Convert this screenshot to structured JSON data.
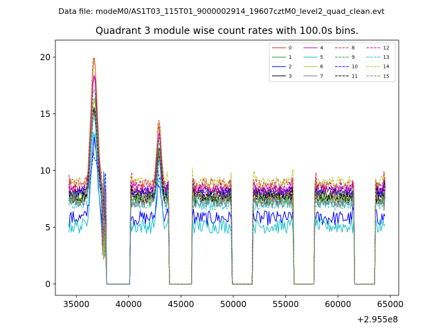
{
  "figure": {
    "suptitle": "Data file: modeM0/AS1T03_115T01_9000002914_19607cztM0_level2_quad_clean.evt"
  },
  "chart_data": {
    "type": "line",
    "title": "Quadrant 3 module wise count rates with 100.0s bins.",
    "xlabel": "",
    "ylabel": "",
    "x_offset_label": "+2.955e8",
    "xlim": [
      33000,
      65800
    ],
    "ylim": [
      -1.0,
      21.5
    ],
    "x_ticks": [
      35000,
      40000,
      45000,
      50000,
      55000,
      60000,
      65000
    ],
    "x_tick_labels": [
      "35000",
      "40000",
      "45000",
      "50000",
      "55000",
      "60000",
      "65000"
    ],
    "y_ticks": [
      0,
      5,
      10,
      15,
      20
    ],
    "y_tick_labels": [
      "0",
      "5",
      "10",
      "15",
      "20"
    ],
    "legend_position": "top-right",
    "legend_columns": 4,
    "segments": [
      {
        "start": 34300,
        "end": 37800,
        "flare_peak": 36700
      },
      {
        "start": 40200,
        "end": 43800,
        "flare_peak": 42900
      },
      {
        "start": 46100,
        "end": 49800
      },
      {
        "start": 51900,
        "end": 55700
      },
      {
        "start": 57800,
        "end": 61500
      },
      {
        "start": 63600,
        "end": 64500
      }
    ],
    "series": [
      {
        "name": "0",
        "color": "#d62728",
        "dash": false,
        "level": 8.3,
        "peak": 19.5
      },
      {
        "name": "1",
        "color": "#2ca02c",
        "dash": false,
        "level": 7.4,
        "peak": 16.5
      },
      {
        "name": "2",
        "color": "#0000ff",
        "dash": false,
        "level": 5.8,
        "peak": 12.5
      },
      {
        "name": "3",
        "color": "#000000",
        "dash": false,
        "level": 7.9,
        "peak": 15.5
      },
      {
        "name": "4",
        "color": "#bf00bf",
        "dash": false,
        "level": 8.0,
        "peak": 18.5
      },
      {
        "name": "5",
        "color": "#17becf",
        "dash": false,
        "level": 5.1,
        "peak": 13.5
      },
      {
        "name": "6",
        "color": "#bcbd22",
        "dash": false,
        "level": 7.6,
        "peak": 16.0
      },
      {
        "name": "7",
        "color": "#7f7f7f",
        "dash": false,
        "level": 7.2,
        "peak": 15.0
      },
      {
        "name": "8",
        "color": "#d62728",
        "dash": true,
        "level": 8.8,
        "peak": 20.3
      },
      {
        "name": "9",
        "color": "#2ca02c",
        "dash": true,
        "level": 7.8,
        "peak": 17.0
      },
      {
        "name": "10",
        "color": "#0000ff",
        "dash": true,
        "level": 8.1,
        "peak": 11.5
      },
      {
        "name": "11",
        "color": "#000000",
        "dash": true,
        "level": 7.6,
        "peak": 15.2
      },
      {
        "name": "12",
        "color": "#bf00bf",
        "dash": true,
        "level": 8.5,
        "peak": 18.0
      },
      {
        "name": "13",
        "color": "#17becf",
        "dash": true,
        "level": 7.0,
        "peak": 14.5
      },
      {
        "name": "14",
        "color": "#bcbd22",
        "dash": true,
        "level": 9.0,
        "peak": 20.0
      },
      {
        "name": "15",
        "color": "#7f7f7f",
        "dash": true,
        "level": 7.3,
        "peak": 15.5
      }
    ]
  }
}
